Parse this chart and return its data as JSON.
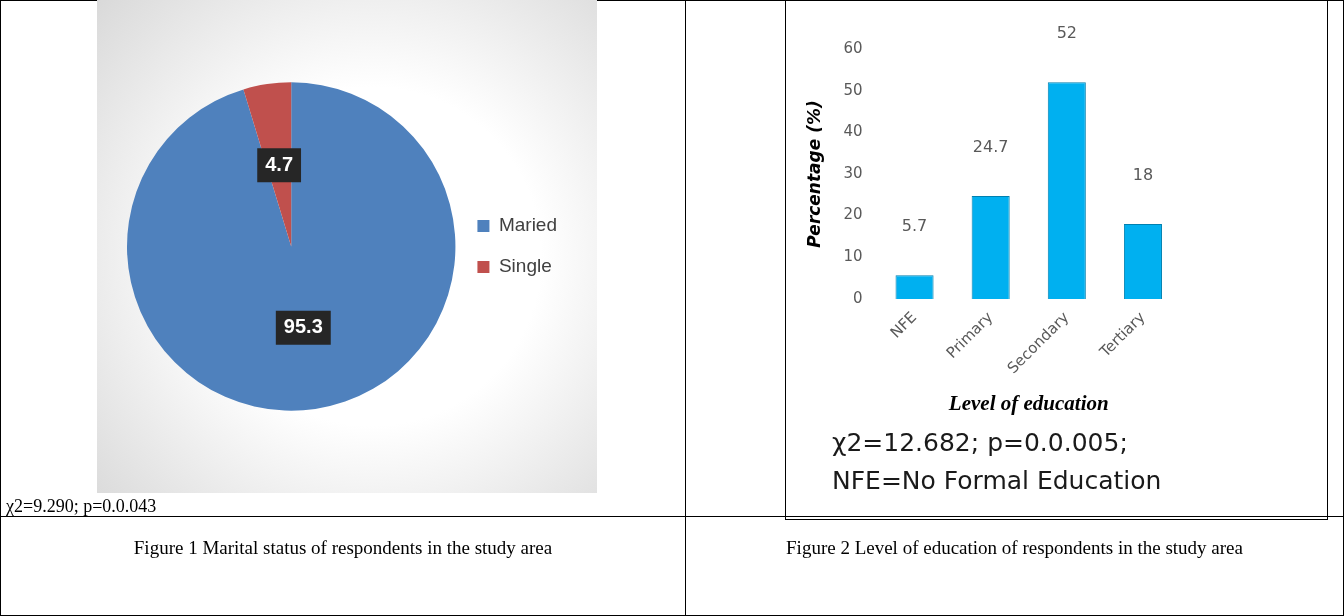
{
  "chart_data": [
    {
      "type": "pie",
      "title": "Figure 1 Marital status of respondents in the study area",
      "categories": [
        "Maried",
        "Single"
      ],
      "values": [
        95.3,
        4.7
      ],
      "colors": [
        "#4f81bd",
        "#c0504d"
      ],
      "data_labels": true,
      "legend": "right",
      "annotations": [
        "χ2=9.290; p=0.0.043"
      ]
    },
    {
      "type": "bar",
      "title": "Figure 2 Level of education of respondents in the study area",
      "categories": [
        "NFE",
        "Primary",
        "Secondary",
        "Tertiary"
      ],
      "values": [
        5.7,
        24.7,
        52,
        18
      ],
      "color": "#00b0f0",
      "ylim": [
        0,
        60
      ],
      "yticks": [
        0,
        10,
        20,
        30,
        40,
        50,
        60
      ],
      "xlabel": "Level of education",
      "ylabel": "Percentage (%)",
      "data_labels": true,
      "grid": false,
      "legend": false,
      "annotations": [
        "χ2=12.682; p=0.0.005;",
        "NFE=No Formal Education"
      ]
    }
  ]
}
